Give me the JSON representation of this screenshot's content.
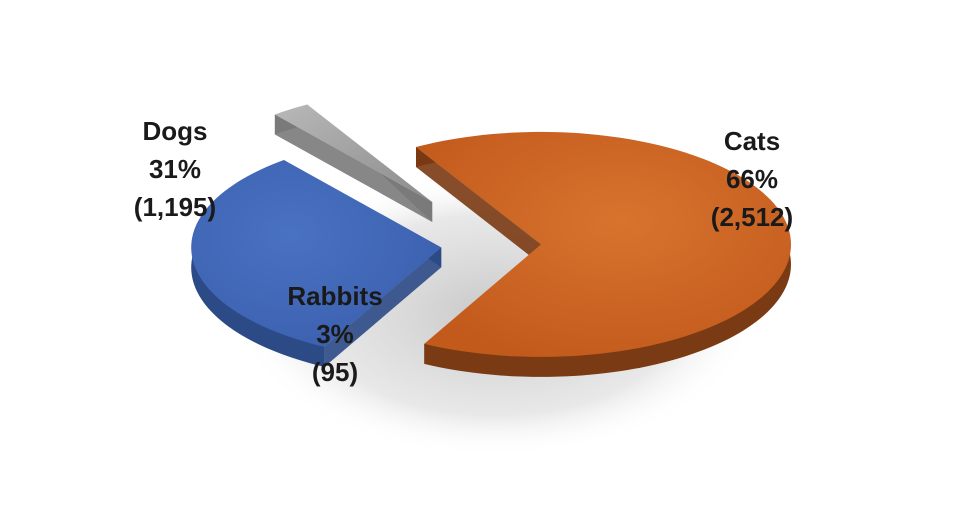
{
  "chart_data": {
    "type": "pie",
    "title": "",
    "labels": [
      "Cats",
      "Dogs",
      "Rabbits"
    ],
    "values": [
      2512,
      1195,
      95
    ],
    "percent_labels": [
      "66%",
      "31%",
      "3%"
    ],
    "count_labels": [
      "(2,512)",
      "(1,195)",
      "(95)"
    ],
    "colors": [
      "#c9601f",
      "#3f66b5",
      "#a6a6a6"
    ],
    "side_colors": [
      "#7a3a13",
      "#2c4a86",
      "#7a7a7a"
    ],
    "style": "3d-exploded",
    "legend": "none"
  }
}
